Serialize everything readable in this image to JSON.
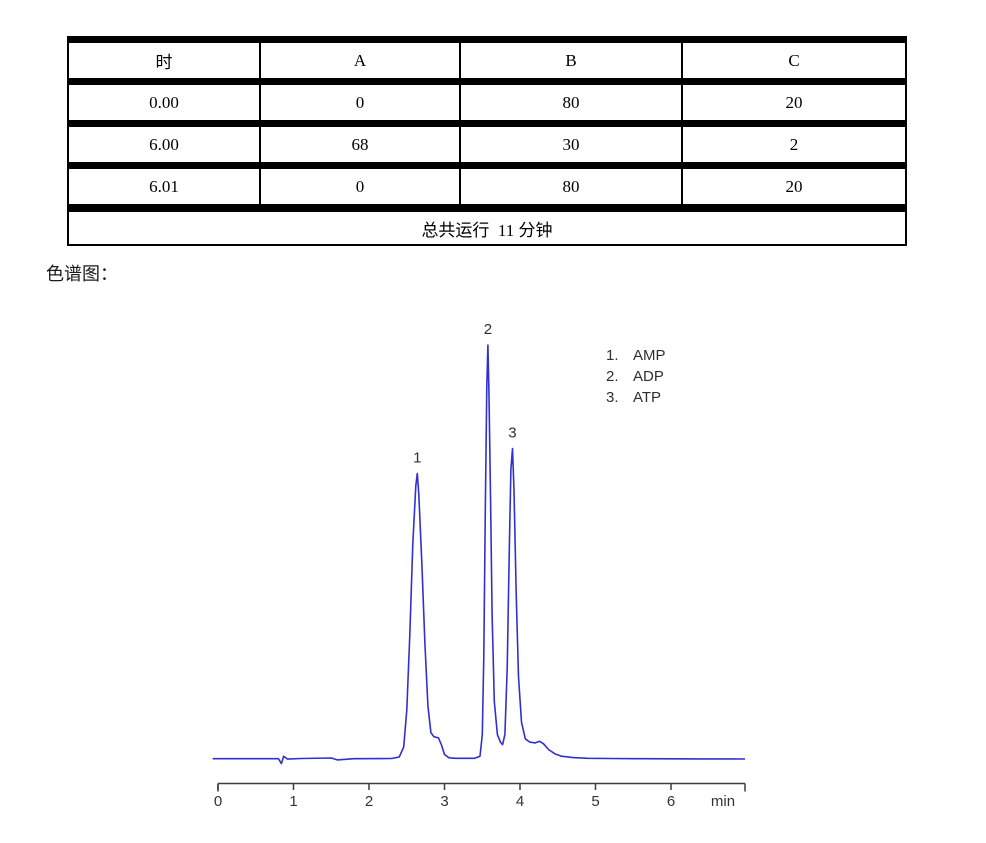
{
  "section_label": "色谱图：",
  "gradient_table": {
    "headers": [
      "时",
      "A",
      "B",
      "C"
    ],
    "rows": [
      [
        "0.00",
        "0",
        "80",
        "20"
      ],
      [
        "6.00",
        "68",
        "30",
        "2"
      ],
      [
        "6.01",
        "0",
        "80",
        "20"
      ]
    ],
    "footer": "总共运行  11 分钟"
  },
  "chart_data": {
    "type": "line",
    "title": "",
    "xlabel": "min",
    "x_unit": "min",
    "x_ticks": [
      "0",
      "1",
      "2",
      "3",
      "4",
      "5",
      "6"
    ],
    "x_range": [
      0,
      6.98
    ],
    "y_range_pct": [
      0,
      100
    ],
    "grid": false,
    "legend_position": "upper-right",
    "line_color": "#3030cf",
    "axis_color": "#3c3c3c",
    "label_color": "#2f2f2f",
    "peaks": [
      {
        "label": "1",
        "name": "AMP",
        "retention_min": 2.64,
        "height_pct": 69
      },
      {
        "label": "2",
        "name": "ADP",
        "retention_min": 3.575,
        "height_pct": 100
      },
      {
        "label": "3",
        "name": "ATP",
        "retention_min": 3.9,
        "height_pct": 75
      }
    ],
    "legend": [
      {
        "index": "1.",
        "name": "AMP"
      },
      {
        "index": "2.",
        "name": "ADP"
      },
      {
        "index": "3.",
        "name": "ATP"
      }
    ],
    "trace": [
      [
        -0.07,
        0.2
      ],
      [
        0.6,
        0.2
      ],
      [
        0.8,
        0.2
      ],
      [
        0.84,
        -1
      ],
      [
        0.87,
        0.8
      ],
      [
        0.92,
        0.1
      ],
      [
        1.1,
        0.25
      ],
      [
        1.5,
        0.35
      ],
      [
        1.58,
        -0.1
      ],
      [
        1.8,
        0.2
      ],
      [
        2.3,
        0.25
      ],
      [
        2.4,
        0.6
      ],
      [
        2.46,
        3
      ],
      [
        2.5,
        12
      ],
      [
        2.54,
        30
      ],
      [
        2.58,
        52
      ],
      [
        2.62,
        66
      ],
      [
        2.64,
        69
      ],
      [
        2.66,
        64
      ],
      [
        2.7,
        47
      ],
      [
        2.74,
        28
      ],
      [
        2.78,
        13
      ],
      [
        2.82,
        6.5
      ],
      [
        2.86,
        5.5
      ],
      [
        2.92,
        5.2
      ],
      [
        2.96,
        3.5
      ],
      [
        3.0,
        1.2
      ],
      [
        3.06,
        0.4
      ],
      [
        3.15,
        0.3
      ],
      [
        3.4,
        0.3
      ],
      [
        3.47,
        0.8
      ],
      [
        3.5,
        6
      ],
      [
        3.52,
        25
      ],
      [
        3.54,
        60
      ],
      [
        3.56,
        90
      ],
      [
        3.575,
        100
      ],
      [
        3.59,
        88
      ],
      [
        3.61,
        62
      ],
      [
        3.63,
        35
      ],
      [
        3.66,
        14
      ],
      [
        3.7,
        6
      ],
      [
        3.74,
        4.2
      ],
      [
        3.77,
        3.6
      ],
      [
        3.8,
        6
      ],
      [
        3.83,
        22
      ],
      [
        3.86,
        52
      ],
      [
        3.88,
        70
      ],
      [
        3.9,
        75
      ],
      [
        3.92,
        65
      ],
      [
        3.95,
        40
      ],
      [
        3.98,
        20
      ],
      [
        4.02,
        9
      ],
      [
        4.07,
        5
      ],
      [
        4.13,
        4.2
      ],
      [
        4.2,
        4
      ],
      [
        4.26,
        4.4
      ],
      [
        4.31,
        3.8
      ],
      [
        4.38,
        2.4
      ],
      [
        4.46,
        1.4
      ],
      [
        4.55,
        0.8
      ],
      [
        4.7,
        0.45
      ],
      [
        4.9,
        0.3
      ],
      [
        5.2,
        0.25
      ],
      [
        5.6,
        0.2
      ],
      [
        6.0,
        0.18
      ],
      [
        6.4,
        0.15
      ],
      [
        6.75,
        0.15
      ],
      [
        6.98,
        0.12
      ]
    ]
  }
}
